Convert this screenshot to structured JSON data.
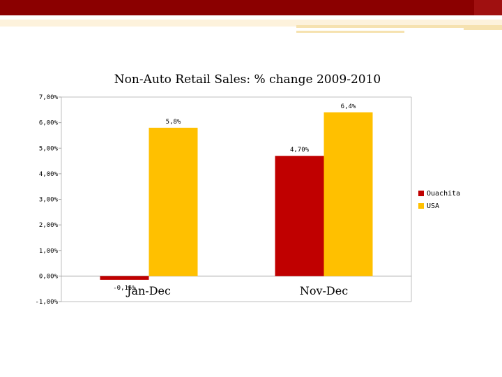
{
  "chart_data": {
    "type": "bar",
    "title": "Non-Auto Retail Sales: % change 2009-2010",
    "categories": [
      "Jan-Dec",
      "Nov-Dec"
    ],
    "series": [
      {
        "name": "Ouachita",
        "values": [
          -0.15,
          4.7
        ],
        "labels": [
          "-0,15%",
          "4,70%"
        ],
        "color": "#c00000"
      },
      {
        "name": "USA",
        "values": [
          5.8,
          6.4
        ],
        "labels": [
          "5,8%",
          "6,4%"
        ],
        "color": "#ffc000"
      }
    ],
    "ylim": [
      -1,
      7
    ],
    "yticks": [
      -1,
      0,
      1,
      2,
      3,
      4,
      5,
      6,
      7
    ],
    "ytick_labels": [
      "-1,00%",
      "0,00%",
      "1,00%",
      "2,00%",
      "3,00%",
      "4,00%",
      "5,00%",
      "6,00%",
      "7,00%"
    ],
    "xlabel": "",
    "ylabel": "",
    "grid": false,
    "legend_position": "right"
  },
  "theme": {
    "banner_color": "#8b0000",
    "accent_gold": "#ffc000"
  }
}
